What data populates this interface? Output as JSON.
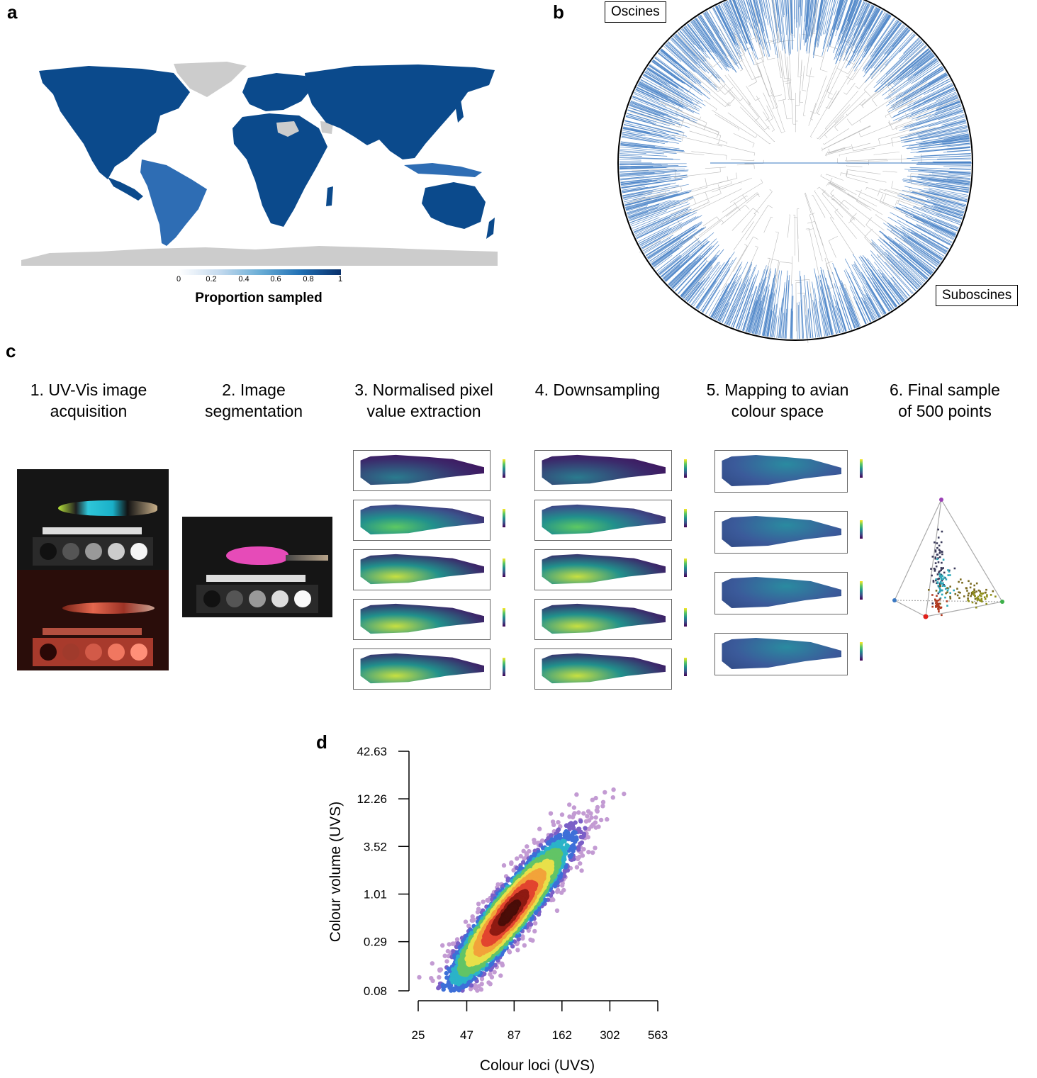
{
  "panels": {
    "a": "a",
    "b": "b",
    "c": "c",
    "d": "d"
  },
  "map": {
    "colorbar_ticks": [
      "0",
      "0.2",
      "0.4",
      "0.6",
      "0.8",
      "1"
    ],
    "colorbar_label": "Proportion sampled",
    "colors": {
      "land": "#0b4a8c",
      "south_america": "#2e6db4",
      "missing": "#cccccc",
      "low": "#ffffff",
      "high": "#08306b"
    }
  },
  "tree": {
    "labels": {
      "oscines": "Oscines",
      "suboscines": "Suboscines"
    },
    "colors": {
      "branch": "#3a78c2",
      "inner": "#bbbbbb"
    }
  },
  "steps": [
    {
      "line1": "1. UV-Vis image",
      "line2": "acquisition"
    },
    {
      "line1": "2. Image",
      "line2": "segmentation"
    },
    {
      "line1": "3. Normalised pixel",
      "line2": "value extraction"
    },
    {
      "line1": "4. Downsampling",
      "line2": ""
    },
    {
      "line1": "5. Mapping to avian",
      "line2": "colour space"
    },
    {
      "line1": "6. Final sample",
      "line2": "of 500 points"
    }
  ],
  "chart_data": {
    "type": "scatter",
    "x_scale": "log",
    "y_scale": "log",
    "xlabel": "Colour loci (UVS)",
    "ylabel": "Colour volume (UVS)",
    "x_ticks": [
      25,
      47,
      87,
      162,
      302,
      563
    ],
    "y_ticks": [
      0.08,
      0.29,
      1.01,
      3.52,
      12.26,
      42.63
    ],
    "x_tick_labels": [
      "25",
      "47",
      "87",
      "162",
      "302",
      "563"
    ],
    "y_tick_labels": [
      "0.08",
      "0.29",
      "1.01",
      "3.52",
      "12.26",
      "42.63"
    ],
    "density_center": {
      "x": 82,
      "y": 0.62
    },
    "point_color": "#c39bd3",
    "density_colors": [
      "#c39bd3",
      "#7b5fc7",
      "#3d6fd8",
      "#2bb3c8",
      "#62c466",
      "#e8e04a",
      "#f2a33a",
      "#e2452f",
      "#8e1a12",
      "#4a0d08"
    ]
  }
}
